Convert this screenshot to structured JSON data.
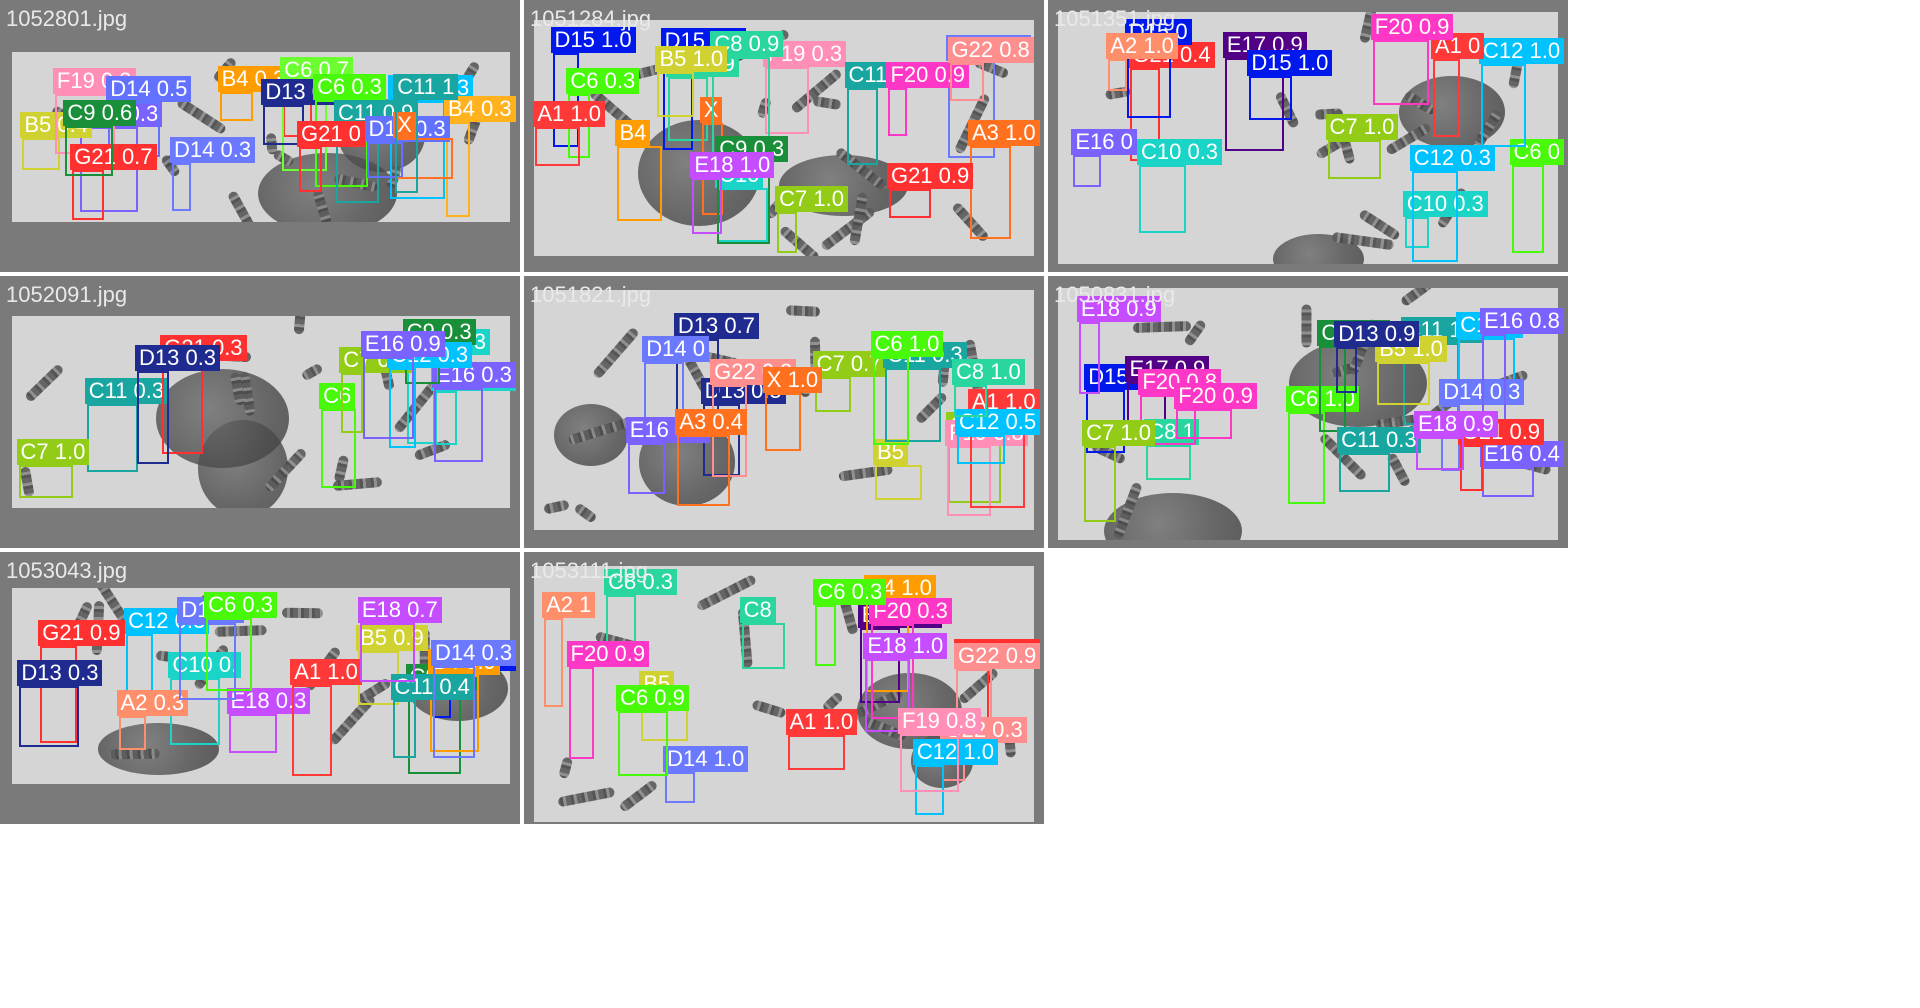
{
  "panels": [
    {
      "title": "1052801.jpg",
      "detections": [
        {
          "label": "A",
          "score": "",
          "color": "#ff3838"
        },
        {
          "label": "B4",
          "score": "0.3",
          "color": "#ff9d00"
        },
        {
          "label": "C12",
          "score": "0.3",
          "color": "#00c2ff"
        },
        {
          "label": "C6",
          "score": "0.7",
          "color": "#6bff2f"
        },
        {
          "label": "B4",
          "score": "0.3",
          "color": "#ffb21d"
        },
        {
          "label": "D13",
          "score": "0.9",
          "color": "#1f2b8f"
        },
        {
          "label": "E16",
          "score": "0.3",
          "color": "#7a62ff"
        },
        {
          "label": "B5",
          "score": "0.4",
          "color": "#cfd231"
        },
        {
          "label": "C6",
          "score": "0.3",
          "color": "#48f90a"
        },
        {
          "label": "C11",
          "score": "0.9",
          "color": "#1aa6a0"
        },
        {
          "label": "F19",
          "score": "0.3",
          "color": "#ff8fb7"
        },
        {
          "label": "D14",
          "score": "0.3",
          "color": "#6272ff"
        },
        {
          "label": "D14",
          "score": "0.5",
          "color": "#6272ff"
        },
        {
          "label": "D14",
          "score": "0.3",
          "color": "#6b79ff"
        },
        {
          "label": "X",
          "score": "",
          "color": "#ff701f"
        },
        {
          "label": "G21",
          "score": "0.7",
          "color": "#ff3030"
        },
        {
          "label": "C11",
          "score": "1",
          "color": "#1aa6a0"
        },
        {
          "label": "C9",
          "score": "0.6",
          "color": "#1a8f3a"
        },
        {
          "label": "G21",
          "score": "0",
          "color": "#ff3030"
        }
      ]
    },
    {
      "title": "1051284.jpg",
      "detections": [
        {
          "label": "D15",
          "score": "0.4",
          "color": "#0018ec"
        },
        {
          "label": "D14",
          "score": "0.9",
          "color": "#6b79ff"
        },
        {
          "label": "C8",
          "score": "0.9",
          "color": "#2ad6a0"
        },
        {
          "label": "F19",
          "score": "0.3",
          "color": "#ff8fb7"
        },
        {
          "label": "D15",
          "score": "1.0",
          "color": "#0018ec"
        },
        {
          "label": "X",
          "score": "",
          "color": "#ff701f"
        },
        {
          "label": "C11",
          "score": "0.8",
          "color": "#1aa6a0"
        },
        {
          "label": "A3",
          "score": "1.0",
          "color": "#ff701f"
        },
        {
          "label": "F20",
          "score": "0.9",
          "color": "#ff37c7"
        },
        {
          "label": "C10",
          "score": "",
          "color": "#1ad4c8"
        },
        {
          "label": "C8",
          "score": "0.9",
          "color": "#2ad6a0"
        },
        {
          "label": "G21",
          "score": "0.9",
          "color": "#ff3030"
        },
        {
          "label": "C9",
          "score": "0.3",
          "color": "#1a8f3a"
        },
        {
          "label": "B4",
          "score": "",
          "color": "#ff9d00"
        },
        {
          "label": "G22",
          "score": "0.8",
          "color": "#ff8f8f"
        },
        {
          "label": "C6",
          "score": "0.3",
          "color": "#48f90a"
        },
        {
          "label": "A1",
          "score": "1.0",
          "color": "#ff3838"
        },
        {
          "label": "C7",
          "score": "1.0",
          "color": "#92cc17"
        },
        {
          "label": "E18",
          "score": "1.0",
          "color": "#c64dff"
        },
        {
          "label": "B5",
          "score": "1.0",
          "color": "#cfd231"
        }
      ]
    },
    {
      "title": "1051351.jpg",
      "detections": [
        {
          "label": "C6",
          "score": "0",
          "color": "#48f90a"
        },
        {
          "label": "E17",
          "score": "0.9",
          "color": "#520085"
        },
        {
          "label": "C10",
          "score": "0.3",
          "color": "#1ad4c8"
        },
        {
          "label": "D15",
          "score": "1.0",
          "color": "#0018ec"
        },
        {
          "label": "G21",
          "score": "0.4",
          "color": "#ff3030"
        },
        {
          "label": "D15",
          "score": "0",
          "color": "#0018ec"
        },
        {
          "label": "C10",
          "score": "0.3",
          "color": "#1ad4c8"
        },
        {
          "label": "C12",
          "score": "1.0",
          "color": "#00c2ff"
        },
        {
          "label": "A1",
          "score": "0",
          "color": "#ff3838"
        },
        {
          "label": "A2",
          "score": "1.0",
          "color": "#ff8f6b"
        },
        {
          "label": "F20",
          "score": "0.9",
          "color": "#ff37c7"
        },
        {
          "label": "C12",
          "score": "0.3",
          "color": "#00c2ff"
        },
        {
          "label": "C7",
          "score": "1.0",
          "color": "#92cc17"
        },
        {
          "label": "E16",
          "score": "0",
          "color": "#7a62ff"
        }
      ]
    },
    {
      "title": "1052091.jpg",
      "detections": [
        {
          "label": "C6",
          "score": "",
          "color": "#48f90a"
        },
        {
          "label": "C10",
          "score": "0.3",
          "color": "#1ad4c8"
        },
        {
          "label": "C11",
          "score": "0.3",
          "color": "#1aa6a0"
        },
        {
          "label": "G21",
          "score": "0.3",
          "color": "#ff3030"
        },
        {
          "label": "D13",
          "score": "0.3",
          "color": "#1f2b8f"
        },
        {
          "label": "C10",
          "score": "0.3",
          "color": "#1ad4c8"
        },
        {
          "label": "C7",
          "score": "0.3",
          "color": "#92cc17"
        },
        {
          "label": "E16",
          "score": "0.3",
          "color": "#7a62ff"
        },
        {
          "label": "C9",
          "score": "0.3",
          "color": "#1a8f3a"
        },
        {
          "label": "C12",
          "score": "0.3",
          "color": "#00c2ff"
        },
        {
          "label": "C7",
          "score": "1.0",
          "color": "#92cc17"
        },
        {
          "label": "E16",
          "score": "0.9",
          "color": "#7a62ff"
        }
      ]
    },
    {
      "title": "1051821.jpg",
      "detections": [
        {
          "label": "D13",
          "score": "0.5",
          "color": "#1f2b8f"
        },
        {
          "label": "D13",
          "score": "0.7",
          "color": "#1f2b8f"
        },
        {
          "label": "C7",
          "score": "0.7",
          "color": "#92cc17"
        },
        {
          "label": "D14",
          "score": "0",
          "color": "#6b79ff"
        },
        {
          "label": "G22",
          "score": "0.9",
          "color": "#ff8f8f"
        },
        {
          "label": "B5",
          "score": "",
          "color": "#cfd231"
        },
        {
          "label": "E16",
          "score": "0.3",
          "color": "#7a62ff"
        },
        {
          "label": "C7",
          "score": "0.9",
          "color": "#92cc17"
        },
        {
          "label": "F19",
          "score": "0.8",
          "color": "#ff8fb7"
        },
        {
          "label": "X",
          "score": "1.0",
          "color": "#ff701f"
        },
        {
          "label": "A3",
          "score": "0.4",
          "color": "#ff701f"
        },
        {
          "label": "C11",
          "score": "0.3",
          "color": "#1aa6a0"
        },
        {
          "label": "A1",
          "score": "1.0",
          "color": "#ff3838"
        },
        {
          "label": "C6",
          "score": "1.0",
          "color": "#48f90a"
        },
        {
          "label": "C12",
          "score": "0.5",
          "color": "#00c2ff"
        },
        {
          "label": "C8",
          "score": "1.0",
          "color": "#2ad6a0"
        }
      ]
    },
    {
      "title": "1050831.jpg",
      "detections": [
        {
          "label": "D15",
          "score": "0.3",
          "color": "#0018ec"
        },
        {
          "label": "C11",
          "score": "1.0",
          "color": "#1aa6a0"
        },
        {
          "label": "E18",
          "score": "0.9",
          "color": "#c64dff"
        },
        {
          "label": "E17",
          "score": "0.9",
          "color": "#520085"
        },
        {
          "label": "C6",
          "score": "1.0",
          "color": "#48f90a"
        },
        {
          "label": "C9",
          "score": "0.4",
          "color": "#1a8f3a"
        },
        {
          "label": "B5",
          "score": "1.0",
          "color": "#cfd231"
        },
        {
          "label": "C12",
          "score": "0",
          "color": "#00c2ff"
        },
        {
          "label": "E16",
          "score": "0.4",
          "color": "#7a62ff"
        },
        {
          "label": "C8",
          "score": "1",
          "color": "#2ad6a0"
        },
        {
          "label": "C11",
          "score": "0.3",
          "color": "#1aa6a0"
        },
        {
          "label": "D14",
          "score": "0.3",
          "color": "#6b79ff"
        },
        {
          "label": "F20",
          "score": "0.8",
          "color": "#ff37c7"
        },
        {
          "label": "D13",
          "score": "0.9",
          "color": "#1f2b8f"
        },
        {
          "label": "E16",
          "score": "0.8",
          "color": "#7a62ff"
        },
        {
          "label": "G21",
          "score": "0.9",
          "color": "#ff3030"
        },
        {
          "label": "E18",
          "score": "0.9",
          "color": "#c64dff"
        },
        {
          "label": "C7",
          "score": "1.0",
          "color": "#92cc17"
        },
        {
          "label": "F20",
          "score": "0.9",
          "color": "#ff37c7"
        }
      ]
    },
    {
      "title": "1053043.jpg",
      "detections": [
        {
          "label": "B5",
          "score": "0.9",
          "color": "#cfd231"
        },
        {
          "label": "C12",
          "score": "0.3",
          "color": "#00c2ff"
        },
        {
          "label": "E18",
          "score": "0.3",
          "color": "#c64dff"
        },
        {
          "label": "G21",
          "score": "0.9",
          "color": "#ff3030"
        },
        {
          "label": "A1",
          "score": "1.0",
          "color": "#ff3838"
        },
        {
          "label": "C10",
          "score": "0.",
          "color": "#1ad4c8"
        },
        {
          "label": "A2",
          "score": "0.3",
          "color": "#ff8f6b"
        },
        {
          "label": "D15",
          "score": "0.4",
          "color": "#0018ec"
        },
        {
          "label": "D13",
          "score": "0.3",
          "color": "#1f2b8f"
        },
        {
          "label": "C9",
          "score": "0.3",
          "color": "#1a8f3a"
        },
        {
          "label": "B4",
          "score": "0.9",
          "color": "#ff9d00"
        },
        {
          "label": "C11",
          "score": "0.4",
          "color": "#1aa6a0"
        },
        {
          "label": "D14",
          "score": "0",
          "color": "#6b79ff"
        },
        {
          "label": "C6",
          "score": "0.3",
          "color": "#48f90a"
        },
        {
          "label": "D14",
          "score": "0.3",
          "color": "#6b79ff"
        },
        {
          "label": "E18",
          "score": "0.7",
          "color": "#c64dff"
        }
      ]
    },
    {
      "title": "1053111.jpg",
      "detections": [
        {
          "label": "C8",
          "score": "",
          "color": "#2ad6a0"
        },
        {
          "label": "E17",
          "score": "0.9",
          "color": "#520085"
        },
        {
          "label": "G21",
          "score": "0.5",
          "color": "#ff3030"
        },
        {
          "label": "G22",
          "score": "0.9",
          "color": "#ff8f8f"
        },
        {
          "label": "B4",
          "score": "1.0",
          "color": "#ff9d00"
        },
        {
          "label": "C8",
          "score": "0.3",
          "color": "#2ad6a0"
        },
        {
          "label": "F20",
          "score": "0.3",
          "color": "#ff37c7"
        },
        {
          "label": "G22",
          "score": "0.3",
          "color": "#ff8f8f"
        },
        {
          "label": "F20",
          "score": "0.9",
          "color": "#ff37c7"
        },
        {
          "label": "C6",
          "score": "0.3",
          "color": "#48f90a"
        },
        {
          "label": "B5",
          "score": "",
          "color": "#cfd231"
        },
        {
          "label": "C12",
          "score": "1.0",
          "color": "#00c2ff"
        },
        {
          "label": "A1",
          "score": "1.0",
          "color": "#ff3838"
        },
        {
          "label": "D14",
          "score": "1.0",
          "color": "#6b79ff"
        },
        {
          "label": "A2",
          "score": "1",
          "color": "#ff8f6b"
        },
        {
          "label": "E18",
          "score": "1.0",
          "color": "#c64dff"
        },
        {
          "label": "C6",
          "score": "0.9",
          "color": "#48f90a"
        },
        {
          "label": "F19",
          "score": "0.8",
          "color": "#ff8fb7"
        }
      ]
    }
  ]
}
